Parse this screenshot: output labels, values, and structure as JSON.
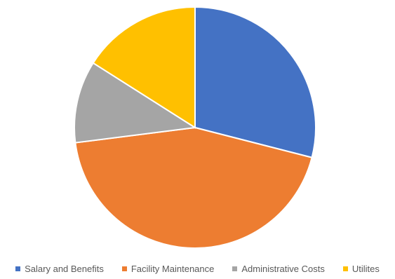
{
  "chart_data": {
    "type": "pie",
    "categories": [
      "Salary and Benefits",
      "Facility Maintenance",
      "Administrative Costs",
      "Utilites"
    ],
    "values": [
      29,
      44,
      11,
      16
    ],
    "colors": [
      "#4472C4",
      "#ED7D31",
      "#A5A5A5",
      "#FFC000"
    ],
    "legend": "bottom",
    "start_angle_deg": 0,
    "direction": "clockwise"
  }
}
